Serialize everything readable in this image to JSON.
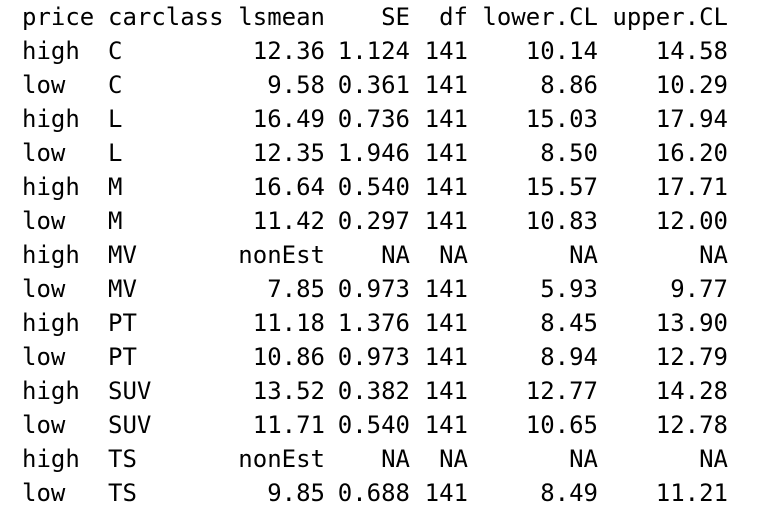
{
  "table": {
    "headers": {
      "price": "price",
      "carclass": "carclass",
      "lsmean": "lsmean",
      "se": "SE",
      "df": "df",
      "lower_cl": "lower.CL",
      "upper_cl": "upper.CL"
    },
    "rows": [
      {
        "price": "high",
        "carclass": "C",
        "lsmean": "12.36",
        "se": "1.124",
        "df": "141",
        "lower_cl": "10.14",
        "upper_cl": "14.58"
      },
      {
        "price": "low",
        "carclass": "C",
        "lsmean": "9.58",
        "se": "0.361",
        "df": "141",
        "lower_cl": "8.86",
        "upper_cl": "10.29"
      },
      {
        "price": "high",
        "carclass": "L",
        "lsmean": "16.49",
        "se": "0.736",
        "df": "141",
        "lower_cl": "15.03",
        "upper_cl": "17.94"
      },
      {
        "price": "low",
        "carclass": "L",
        "lsmean": "12.35",
        "se": "1.946",
        "df": "141",
        "lower_cl": "8.50",
        "upper_cl": "16.20"
      },
      {
        "price": "high",
        "carclass": "M",
        "lsmean": "16.64",
        "se": "0.540",
        "df": "141",
        "lower_cl": "15.57",
        "upper_cl": "17.71"
      },
      {
        "price": "low",
        "carclass": "M",
        "lsmean": "11.42",
        "se": "0.297",
        "df": "141",
        "lower_cl": "10.83",
        "upper_cl": "12.00"
      },
      {
        "price": "high",
        "carclass": "MV",
        "lsmean": "nonEst",
        "se": "NA",
        "df": "NA",
        "lower_cl": "NA",
        "upper_cl": "NA"
      },
      {
        "price": "low",
        "carclass": "MV",
        "lsmean": "7.85",
        "se": "0.973",
        "df": "141",
        "lower_cl": "5.93",
        "upper_cl": "9.77"
      },
      {
        "price": "high",
        "carclass": "PT",
        "lsmean": "11.18",
        "se": "1.376",
        "df": "141",
        "lower_cl": "8.45",
        "upper_cl": "13.90"
      },
      {
        "price": "low",
        "carclass": "PT",
        "lsmean": "10.86",
        "se": "0.973",
        "df": "141",
        "lower_cl": "8.94",
        "upper_cl": "12.79"
      },
      {
        "price": "high",
        "carclass": "SUV",
        "lsmean": "13.52",
        "se": "0.382",
        "df": "141",
        "lower_cl": "12.77",
        "upper_cl": "14.28"
      },
      {
        "price": "low",
        "carclass": "SUV",
        "lsmean": "11.71",
        "se": "0.540",
        "df": "141",
        "lower_cl": "10.65",
        "upper_cl": "12.78"
      },
      {
        "price": "high",
        "carclass": "TS",
        "lsmean": "nonEst",
        "se": "NA",
        "df": "NA",
        "lower_cl": "NA",
        "upper_cl": "NA"
      },
      {
        "price": "low",
        "carclass": "TS",
        "lsmean": "9.85",
        "se": "0.688",
        "df": "141",
        "lower_cl": "8.49",
        "upper_cl": "11.21"
      }
    ]
  }
}
